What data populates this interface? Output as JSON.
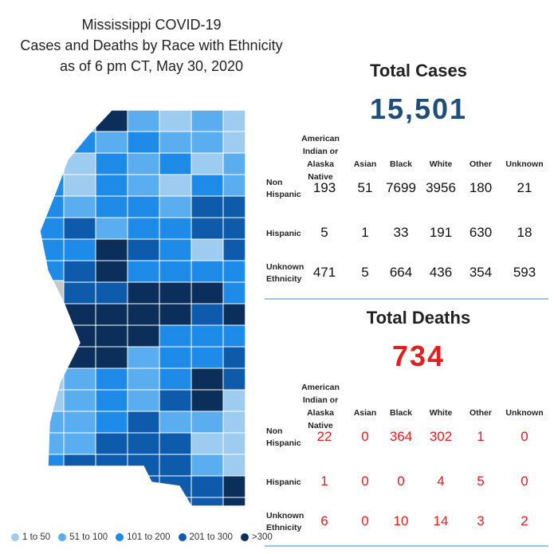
{
  "title_lines": [
    "Mississippi COVID-19",
    "Cases and Deaths by Race with Ethnicity",
    "as of 6 pm CT, May 30, 2020"
  ],
  "colors": {
    "c1": "#9ecbf0",
    "c2": "#5aaef0",
    "c3": "#1e8be8",
    "c4": "#0e5bab",
    "c5": "#0b2f5a",
    "other": "#c8c8c8",
    "death_red": "#e02020",
    "case_blue": "#1e4e79"
  },
  "legend": [
    {
      "label": "1 to 50",
      "color": "#9ecbf0"
    },
    {
      "label": "51 to 100",
      "color": "#5aaef0"
    },
    {
      "label": "101 to 200",
      "color": "#1e8be8"
    },
    {
      "label": "201 to 300",
      "color": "#0e5bab"
    },
    {
      "label": ">300",
      "color": "#0b2f5a"
    }
  ],
  "cases": {
    "title": "Total Cases",
    "total": "15,501",
    "columns": [
      "American Indian or Alaska Native",
      "Asian",
      "Black",
      "White",
      "Other",
      "Unknown"
    ],
    "rows": [
      {
        "label": "Non Hispanic",
        "values": [
          193,
          51,
          7699,
          3956,
          180,
          21
        ]
      },
      {
        "label": "Hispanic",
        "values": [
          5,
          1,
          33,
          191,
          630,
          18
        ]
      },
      {
        "label": "Unknown Ethnicity",
        "values": [
          471,
          5,
          664,
          436,
          354,
          593
        ]
      }
    ]
  },
  "deaths": {
    "title": "Total Deaths",
    "total": "734",
    "columns": [
      "American Indian or Alaska Native",
      "Asian",
      "Black",
      "White",
      "Other",
      "Unknown"
    ],
    "rows": [
      {
        "label": "Non Hispanic",
        "values": [
          22,
          0,
          364,
          302,
          1,
          0
        ]
      },
      {
        "label": "Hispanic",
        "values": [
          1,
          0,
          0,
          4,
          5,
          0
        ]
      },
      {
        "label": "Unknown Ethnicity",
        "values": [
          6,
          0,
          10,
          14,
          3,
          2
        ]
      }
    ]
  },
  "chart_data": {
    "type": "table",
    "title": "Mississippi COVID-19 Cases and Deaths by Race with Ethnicity as of 6 pm CT, May 30, 2020",
    "categories": [
      "American Indian or Alaska Native",
      "Asian",
      "Black",
      "White",
      "Other",
      "Unknown"
    ],
    "tables": [
      {
        "name": "Total Cases",
        "total": 15501,
        "series": [
          {
            "name": "Non Hispanic",
            "values": [
              193,
              51,
              7699,
              3956,
              180,
              21
            ]
          },
          {
            "name": "Hispanic",
            "values": [
              5,
              1,
              33,
              191,
              630,
              18
            ]
          },
          {
            "name": "Unknown Ethnicity",
            "values": [
              471,
              5,
              664,
              436,
              354,
              593
            ]
          }
        ]
      },
      {
        "name": "Total Deaths",
        "total": 734,
        "series": [
          {
            "name": "Non Hispanic",
            "values": [
              22,
              0,
              364,
              302,
              1,
              0
            ]
          },
          {
            "name": "Hispanic",
            "values": [
              1,
              0,
              0,
              4,
              5,
              0
            ]
          },
          {
            "name": "Unknown Ethnicity",
            "values": [
              6,
              0,
              10,
              14,
              3,
              2
            ]
          }
        ]
      }
    ]
  }
}
